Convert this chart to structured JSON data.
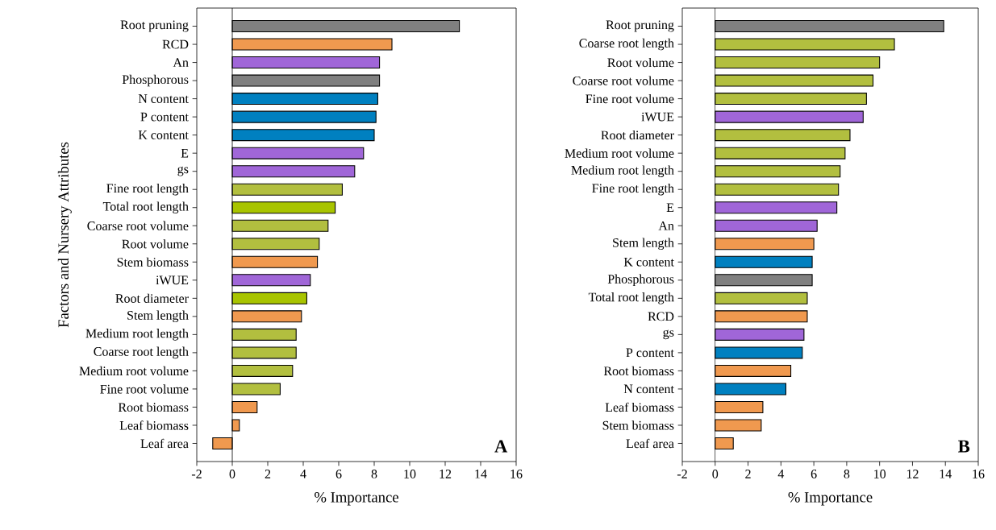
{
  "chart_data": [
    {
      "type": "bar",
      "orientation": "horizontal",
      "ylabel": "Factors and Nursery Attributes",
      "xlabel": "% Importance",
      "annotations": [
        "A"
      ],
      "categories": [
        "Root pruning",
        "RCD",
        "An",
        "Phosphorous",
        "N content",
        "P content",
        "K content",
        "E",
        "gs",
        "Fine root length",
        "Total root length",
        "Coarse root volume",
        "Root volume",
        "Stem biomass",
        "iWUE",
        "Root diameter",
        "Stem length",
        "Medium root length",
        "Coarse root length",
        "Medium root volume",
        "Fine root volume",
        "Root biomass",
        "Leaf biomass",
        "Leaf area"
      ],
      "values": [
        12.8,
        9.0,
        8.3,
        8.3,
        8.2,
        8.1,
        8.0,
        7.4,
        6.9,
        6.2,
        5.8,
        5.4,
        4.9,
        4.8,
        4.4,
        4.2,
        3.9,
        3.6,
        3.6,
        3.4,
        2.7,
        1.4,
        0.4,
        -1.1
      ],
      "colors": [
        "#808080",
        "#f0994f",
        "#a066d8",
        "#808080",
        "#0080c0",
        "#0080c0",
        "#0080c0",
        "#a066d8",
        "#a066d8",
        "#b2bf3f",
        "#a8c400",
        "#b2bf3f",
        "#b2bf3f",
        "#f0994f",
        "#a066d8",
        "#a8c400",
        "#f0994f",
        "#b2bf3f",
        "#b2bf3f",
        "#b2bf3f",
        "#b2bf3f",
        "#f0994f",
        "#f0994f",
        "#f0994f"
      ],
      "xlim": [
        -2,
        16
      ],
      "xticks": [
        -2,
        0,
        2,
        4,
        6,
        8,
        10,
        12,
        14,
        16
      ]
    },
    {
      "type": "bar",
      "orientation": "horizontal",
      "xlabel": "% Importance",
      "annotations": [
        "B"
      ],
      "categories": [
        "Root pruning",
        "Coarse root length",
        "Root volume",
        "Coarse root volume",
        "Fine root volume",
        "iWUE",
        "Root diameter",
        "Medium root volume",
        "Medium root length",
        "Fine root length",
        "E",
        "An",
        "Stem length",
        "K content",
        "Phosphorous",
        "Total root length",
        "RCD",
        "gs",
        "P content",
        "Root biomass",
        "N content",
        "Leaf biomass",
        "Stem biomass",
        "Leaf area"
      ],
      "values": [
        13.9,
        10.9,
        10.0,
        9.6,
        9.2,
        9.0,
        8.2,
        7.9,
        7.6,
        7.5,
        7.4,
        6.2,
        6.0,
        5.9,
        5.9,
        5.6,
        5.6,
        5.4,
        5.3,
        4.6,
        4.3,
        2.9,
        2.8,
        1.1
      ],
      "colors": [
        "#808080",
        "#b2bf3f",
        "#b2bf3f",
        "#b2bf3f",
        "#b2bf3f",
        "#a066d8",
        "#b2bf3f",
        "#b2bf3f",
        "#b2bf3f",
        "#b2bf3f",
        "#a066d8",
        "#a066d8",
        "#f0994f",
        "#0080c0",
        "#808080",
        "#b2bf3f",
        "#f0994f",
        "#a066d8",
        "#0080c0",
        "#f0994f",
        "#0080c0",
        "#f0994f",
        "#f0994f",
        "#f0994f"
      ],
      "xlim": [
        -2,
        16
      ],
      "xticks": [
        -2,
        0,
        2,
        4,
        6,
        8,
        10,
        12,
        14,
        16
      ]
    }
  ]
}
